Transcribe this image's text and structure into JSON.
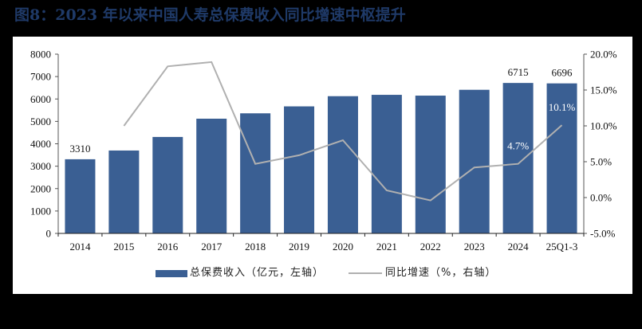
{
  "title": "图8：2023 年以来中国人寿总保费收入同比增速中枢提升",
  "colors": {
    "bar": "#3a5f93",
    "line": "#b0b0b0",
    "title": "#1f3a68",
    "axis": "#555555"
  },
  "legend": {
    "bar_label": "总保费收入（亿元，左轴）",
    "line_label": "同比增速（%，右轴）"
  },
  "chart_data": {
    "type": "bar+line",
    "title": "2023 年以来中国人寿总保费收入同比增速中枢提升",
    "categories": [
      "2014",
      "2015",
      "2016",
      "2017",
      "2018",
      "2019",
      "2020",
      "2021",
      "2022",
      "2023",
      "2024",
      "25Q1-3"
    ],
    "series": [
      {
        "name": "总保费收入（亿元，左轴）",
        "type": "bar",
        "axis": "left",
        "values": [
          3310,
          3700,
          4305,
          5120,
          5360,
          5670,
          6125,
          6185,
          6150,
          6410,
          6715,
          6696
        ]
      },
      {
        "name": "同比增速（%，右轴）",
        "type": "line",
        "axis": "right",
        "values": [
          null,
          10.0,
          18.3,
          18.9,
          4.7,
          5.9,
          8.0,
          1.0,
          -0.4,
          4.2,
          4.7,
          10.1
        ]
      }
    ],
    "data_labels": [
      {
        "category": "2014",
        "series": "bar",
        "text": "3310"
      },
      {
        "category": "2024",
        "series": "bar",
        "text": "6715"
      },
      {
        "category": "25Q1-3",
        "series": "bar",
        "text": "6696"
      },
      {
        "category": "2024",
        "series": "line",
        "text": "4.7%"
      },
      {
        "category": "25Q1-3",
        "series": "line",
        "text": "10.1%"
      }
    ],
    "left_axis": {
      "ylim": [
        0,
        8000
      ],
      "ticks": [
        "0",
        "1000",
        "2000",
        "3000",
        "4000",
        "5000",
        "6000",
        "7000",
        "8000"
      ]
    },
    "right_axis": {
      "ylim": [
        -5.0,
        20.0
      ],
      "ticks": [
        "-5.0%",
        "0.0%",
        "5.0%",
        "10.0%",
        "15.0%",
        "20.0%"
      ]
    },
    "xlabel": "",
    "ylabel": "",
    "grid": false,
    "legend_position": "bottom"
  }
}
